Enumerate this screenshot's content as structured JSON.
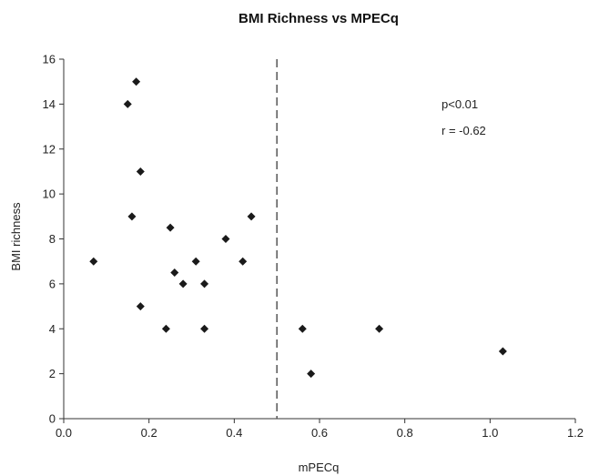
{
  "chart_data": {
    "type": "scatter",
    "title": "BMI Richness vs MPECq",
    "xlabel": "mPECq",
    "ylabel": "BMI richness",
    "xlim": [
      0,
      1.2
    ],
    "ylim": [
      0,
      16
    ],
    "xticks": [
      "0.0",
      "0.2",
      "0.4",
      "0.6",
      "0.8",
      "1.0",
      "1.2"
    ],
    "yticks": [
      "0",
      "2",
      "4",
      "6",
      "8",
      "10",
      "12",
      "14",
      "16"
    ],
    "grid": false,
    "legend": "none",
    "marker_color": "#1a1a1a",
    "reference_line": {
      "x": 0.5,
      "style": "dashed"
    },
    "annotations": [
      "p<0.01",
      "r = -0.62"
    ],
    "points": [
      {
        "x": 0.07,
        "y": 7
      },
      {
        "x": 0.15,
        "y": 14
      },
      {
        "x": 0.16,
        "y": 9
      },
      {
        "x": 0.17,
        "y": 15
      },
      {
        "x": 0.18,
        "y": 11
      },
      {
        "x": 0.18,
        "y": 5
      },
      {
        "x": 0.24,
        "y": 4
      },
      {
        "x": 0.25,
        "y": 8.5
      },
      {
        "x": 0.26,
        "y": 6.5
      },
      {
        "x": 0.28,
        "y": 6
      },
      {
        "x": 0.31,
        "y": 7
      },
      {
        "x": 0.33,
        "y": 6
      },
      {
        "x": 0.33,
        "y": 4
      },
      {
        "x": 0.38,
        "y": 8
      },
      {
        "x": 0.42,
        "y": 7
      },
      {
        "x": 0.44,
        "y": 9
      },
      {
        "x": 0.56,
        "y": 4
      },
      {
        "x": 0.58,
        "y": 2
      },
      {
        "x": 0.74,
        "y": 4
      },
      {
        "x": 1.03,
        "y": 3
      }
    ]
  }
}
